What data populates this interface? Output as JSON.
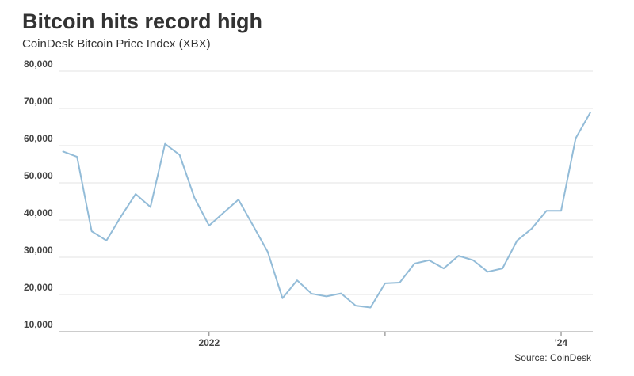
{
  "chart_data": {
    "type": "line",
    "title": "Bitcoin hits record high",
    "subtitle": "CoinDesk Bitcoin Price Index (XBX)",
    "source": "Source: CoinDesk",
    "x": [
      2021.167,
      2021.25,
      2021.333,
      2021.417,
      2021.5,
      2021.583,
      2021.667,
      2021.75,
      2021.833,
      2021.917,
      2022.0,
      2022.083,
      2022.167,
      2022.25,
      2022.333,
      2022.417,
      2022.5,
      2022.583,
      2022.667,
      2022.75,
      2022.833,
      2022.917,
      2023.0,
      2023.083,
      2023.167,
      2023.25,
      2023.333,
      2023.417,
      2023.5,
      2023.583,
      2023.667,
      2023.75,
      2023.833,
      2023.917,
      2024.0,
      2024.083,
      2024.167
    ],
    "series": [
      {
        "name": "XBX",
        "color": "#93bcd8",
        "values": [
          58500,
          57000,
          37000,
          34500,
          41000,
          47000,
          43500,
          60500,
          57500,
          46000,
          38500,
          42000,
          45500,
          38500,
          31500,
          19000,
          23800,
          20200,
          19500,
          20300,
          17000,
          16500,
          23000,
          23200,
          28300,
          29200,
          27000,
          30400,
          29200,
          26100,
          27000,
          34500,
          37700,
          42500,
          42500,
          62000,
          69000
        ]
      }
    ],
    "xlim": [
      2021.15,
      2024.18
    ],
    "xticks": [
      2022,
      {
        "value": 2023,
        "label": null
      },
      {
        "value": 2024,
        "label": "'24"
      }
    ],
    "ylim": [
      10000,
      80000
    ],
    "yticks": [
      {
        "value": 10000,
        "label": "10,000"
      },
      {
        "value": 20000,
        "label": "20,000"
      },
      {
        "value": 30000,
        "label": "30,000"
      },
      {
        "value": 40000,
        "label": "40,000"
      },
      {
        "value": 50000,
        "label": "50,000"
      },
      {
        "value": 60000,
        "label": "60,000"
      },
      {
        "value": 70000,
        "label": "70,000"
      },
      {
        "value": 80000,
        "label": "80,000"
      }
    ],
    "grid": true
  }
}
